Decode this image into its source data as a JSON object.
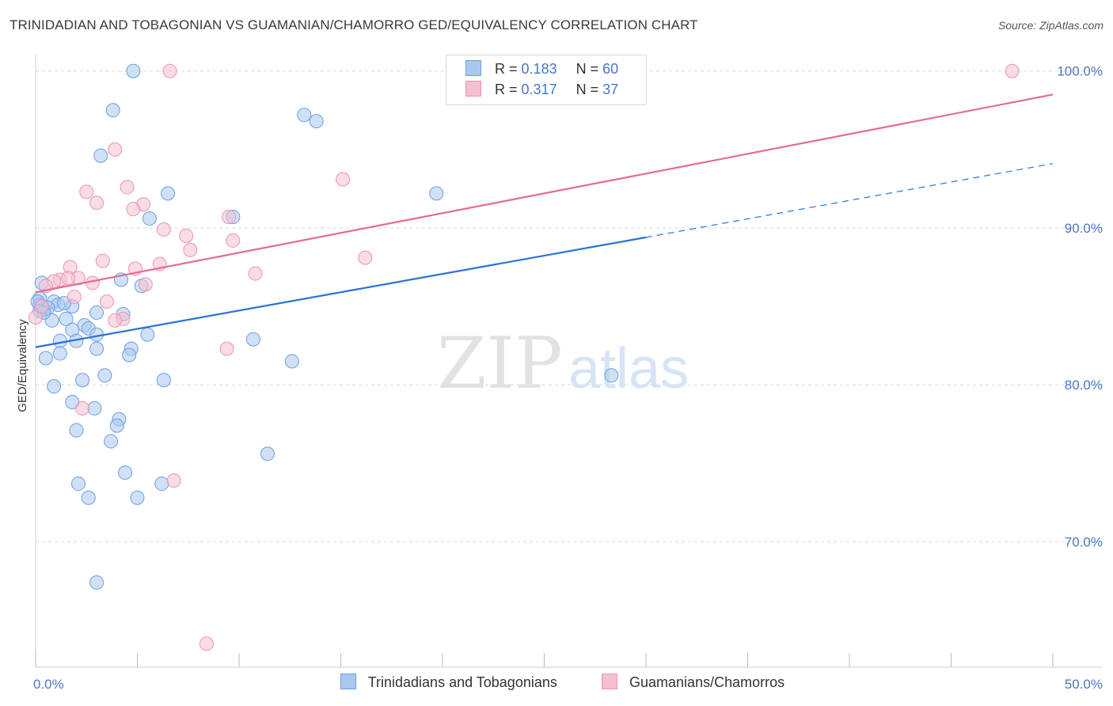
{
  "header": {
    "title": "TRINIDADIAN AND TOBAGONIAN VS GUAMANIAN/CHAMORRO GED/EQUIVALENCY CORRELATION CHART",
    "source": "Source: ZipAtlas.com"
  },
  "watermark": {
    "zip": "ZIP",
    "atlas": "atlas"
  },
  "legend": {
    "rows": [
      {
        "r_label": "R =",
        "r_value": "0.183",
        "n_label": "N =",
        "n_value": "60"
      },
      {
        "r_label": "R =",
        "r_value": "0.317",
        "n_label": "N =",
        "n_value": "37"
      }
    ]
  },
  "bottom_legend": {
    "items": [
      {
        "label": "Trinidadians and Tobagonians"
      },
      {
        "label": "Guamanians/Chamorros"
      }
    ]
  },
  "colors": {
    "blue_fill": "#a9c8f0",
    "blue_stroke": "#6a9fe0",
    "blue_line": "#2a72d6",
    "pink_fill": "#f6bfd0",
    "pink_stroke": "#ee93b0",
    "pink_line": "#e36b96",
    "tick_text": "#4a76c6",
    "grid": "#d9d9d9"
  },
  "chart_data": {
    "type": "scatter",
    "title": "TRINIDADIAN AND TOBAGONIAN VS GUAMANIAN/CHAMORRO GED/EQUIVALENCY CORRELATION CHART",
    "xlabel": "",
    "ylabel": "GED/Equivalency",
    "xlim": [
      0,
      50
    ],
    "ylim": [
      62,
      101.5
    ],
    "x_tick_labels": [
      "0.0%",
      "50.0%"
    ],
    "y_ticks": [
      70,
      80,
      90,
      100
    ],
    "y_tick_labels": [
      "70.0%",
      "80.0%",
      "90.0%",
      "100.0%"
    ],
    "grid": "horizontal dashed",
    "legend_position": "top-center",
    "series": [
      {
        "name": "Trinidadians and Tobagonians",
        "r": 0.183,
        "n": 60,
        "trend": {
          "x0": 0,
          "y0": 82.4,
          "x1": 30,
          "y1": 89.4,
          "dashed_to_x": 50,
          "dashed_to_y": 94.1
        },
        "points": [
          [
            4.8,
            100.0
          ],
          [
            3.8,
            97.5
          ],
          [
            13.2,
            97.2
          ],
          [
            13.8,
            96.8
          ],
          [
            3.2,
            94.6
          ],
          [
            6.5,
            92.2
          ],
          [
            19.7,
            92.2
          ],
          [
            5.6,
            90.6
          ],
          [
            9.7,
            90.7
          ],
          [
            0.3,
            86.5
          ],
          [
            4.2,
            86.7
          ],
          [
            5.2,
            86.3
          ],
          [
            0.2,
            85.5
          ],
          [
            0.9,
            85.3
          ],
          [
            0.2,
            85.1
          ],
          [
            1.1,
            85.1
          ],
          [
            1.8,
            85.0
          ],
          [
            0.4,
            84.8
          ],
          [
            3.0,
            84.6
          ],
          [
            4.3,
            84.5
          ],
          [
            0.8,
            84.1
          ],
          [
            1.5,
            84.2
          ],
          [
            2.4,
            83.8
          ],
          [
            1.8,
            83.5
          ],
          [
            2.6,
            83.6
          ],
          [
            3.0,
            83.2
          ],
          [
            5.5,
            83.2
          ],
          [
            2.0,
            82.8
          ],
          [
            1.2,
            82.8
          ],
          [
            10.7,
            82.9
          ],
          [
            3.0,
            82.3
          ],
          [
            4.7,
            82.3
          ],
          [
            1.2,
            82.0
          ],
          [
            4.6,
            81.9
          ],
          [
            0.5,
            81.7
          ],
          [
            12.6,
            81.5
          ],
          [
            2.3,
            80.3
          ],
          [
            3.4,
            80.6
          ],
          [
            6.3,
            80.3
          ],
          [
            28.3,
            80.6
          ],
          [
            0.9,
            79.9
          ],
          [
            1.8,
            78.9
          ],
          [
            2.9,
            78.5
          ],
          [
            4.1,
            77.8
          ],
          [
            4.0,
            77.4
          ],
          [
            2.0,
            77.1
          ],
          [
            3.7,
            76.4
          ],
          [
            11.4,
            75.6
          ],
          [
            4.4,
            74.4
          ],
          [
            2.1,
            73.7
          ],
          [
            6.2,
            73.7
          ],
          [
            2.6,
            72.8
          ],
          [
            5.0,
            72.8
          ],
          [
            3.0,
            67.4
          ],
          [
            0.1,
            85.3
          ],
          [
            0.3,
            85.0
          ],
          [
            1.4,
            85.2
          ],
          [
            0.6,
            84.9
          ],
          [
            0.2,
            84.7
          ],
          [
            0.4,
            84.6
          ]
        ]
      },
      {
        "name": "Guamanians/Chamorros",
        "r": 0.317,
        "n": 37,
        "trend": {
          "x0": 0,
          "y0": 85.9,
          "x1": 50,
          "y1": 98.5
        },
        "points": [
          [
            6.6,
            100.0
          ],
          [
            48.0,
            100.0
          ],
          [
            3.9,
            95.0
          ],
          [
            15.1,
            93.1
          ],
          [
            4.5,
            92.6
          ],
          [
            2.5,
            92.3
          ],
          [
            3.0,
            91.6
          ],
          [
            5.3,
            91.5
          ],
          [
            4.8,
            91.2
          ],
          [
            9.5,
            90.7
          ],
          [
            6.3,
            89.9
          ],
          [
            7.4,
            89.5
          ],
          [
            9.7,
            89.2
          ],
          [
            7.6,
            88.6
          ],
          [
            16.2,
            88.1
          ],
          [
            3.3,
            87.9
          ],
          [
            6.1,
            87.7
          ],
          [
            1.7,
            87.5
          ],
          [
            4.9,
            87.4
          ],
          [
            10.8,
            87.1
          ],
          [
            2.1,
            86.8
          ],
          [
            1.2,
            86.7
          ],
          [
            1.6,
            86.8
          ],
          [
            0.9,
            86.6
          ],
          [
            2.8,
            86.5
          ],
          [
            5.4,
            86.4
          ],
          [
            0.5,
            86.3
          ],
          [
            1.9,
            85.6
          ],
          [
            3.5,
            85.3
          ],
          [
            0.0,
            84.3
          ],
          [
            4.3,
            84.2
          ],
          [
            3.9,
            84.1
          ],
          [
            9.4,
            82.3
          ],
          [
            2.3,
            78.5
          ],
          [
            6.8,
            73.9
          ],
          [
            8.4,
            63.5
          ],
          [
            0.3,
            85.0
          ]
        ]
      }
    ]
  }
}
